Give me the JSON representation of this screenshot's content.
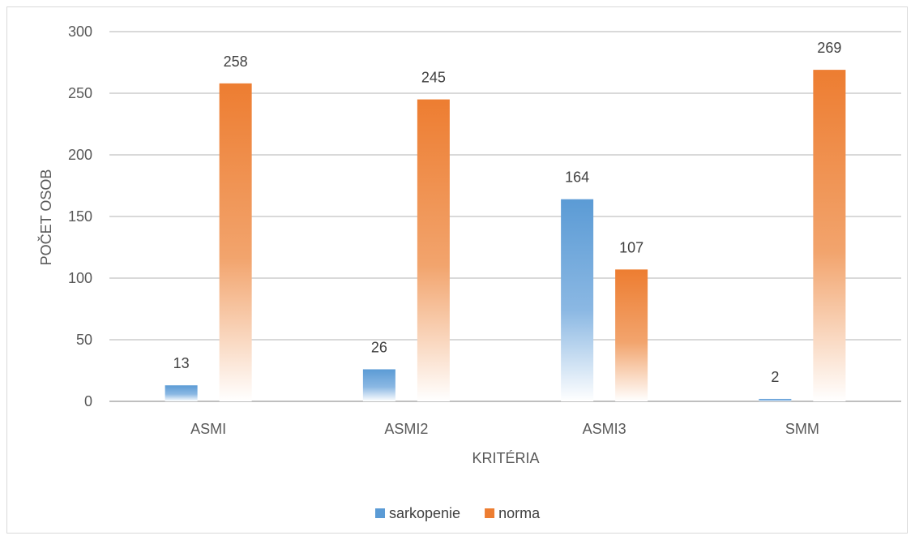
{
  "chart_data": {
    "type": "bar",
    "categories": [
      "ASMI",
      "ASMI2",
      "ASMI3",
      "SMM"
    ],
    "series": [
      {
        "name": "sarkopenie",
        "values": [
          13,
          26,
          164,
          2
        ],
        "color": "#5b9bd5"
      },
      {
        "name": "norma",
        "values": [
          258,
          245,
          107,
          269
        ],
        "color": "#ed7d31"
      }
    ],
    "title": "",
    "xlabel": "KRITÉRIA",
    "ylabel": "POČET OSOB",
    "ylim": [
      0,
      300
    ],
    "yticks": [
      0,
      50,
      100,
      150,
      200,
      250,
      300
    ],
    "grid": true,
    "legend_position": "bottom",
    "bar_style": "gradient fading to white at base"
  }
}
